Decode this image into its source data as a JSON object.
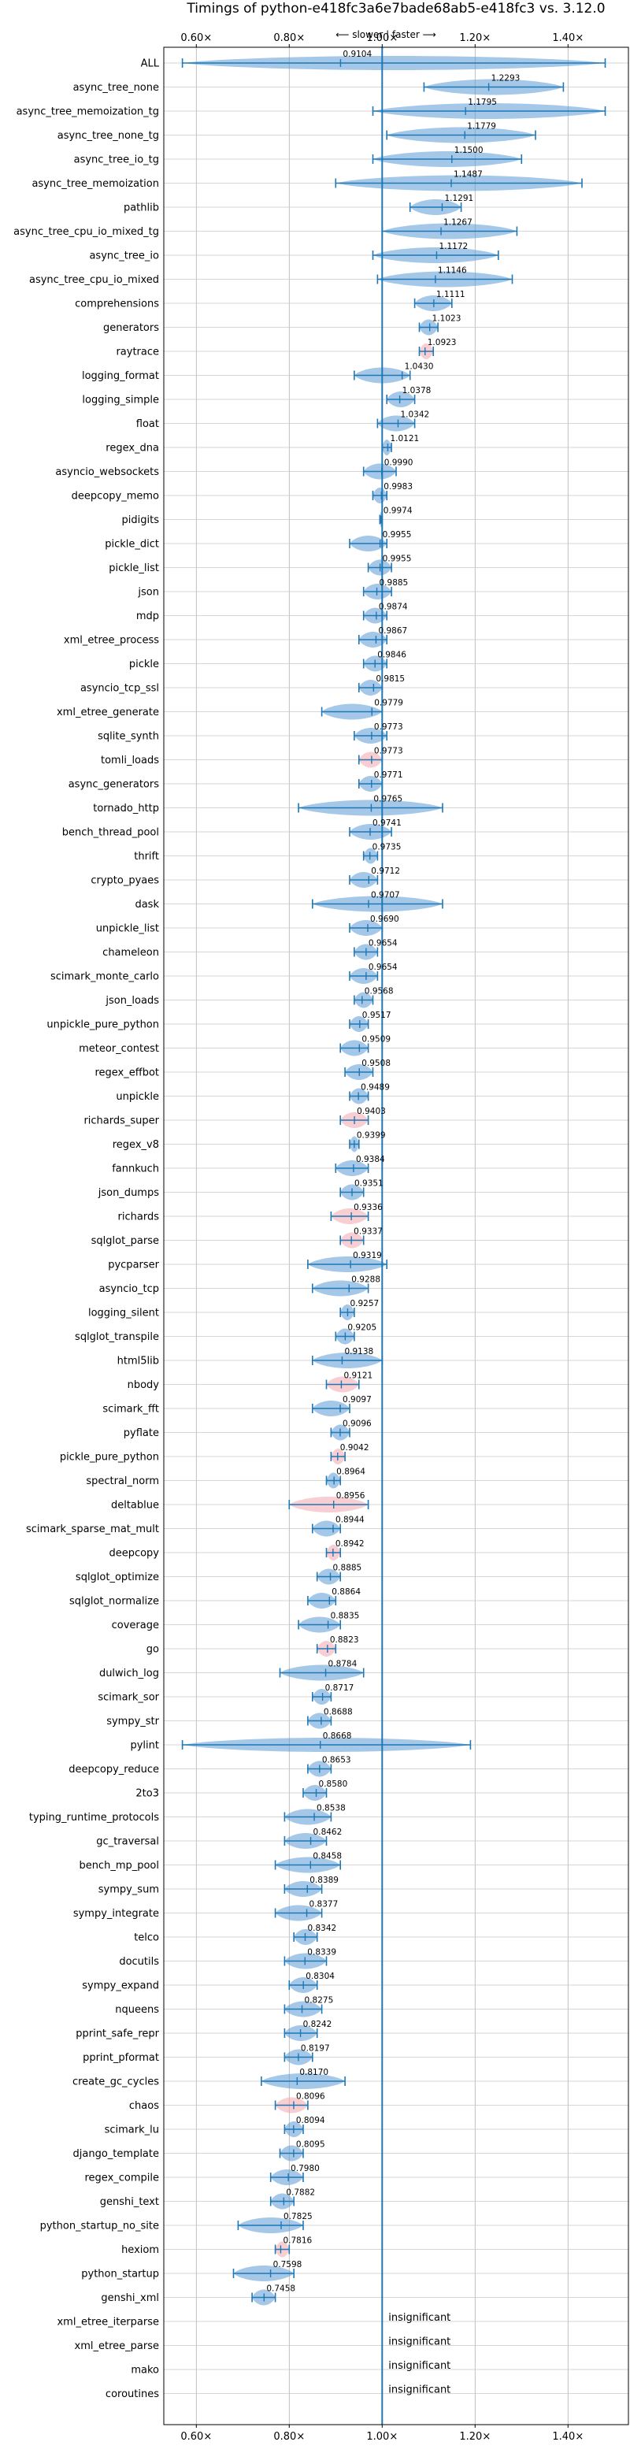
{
  "chart_data": {
    "type": "violin",
    "title": "Timings of python-e418fc3a6e7bade68ab5-e418fc3 vs. 3.12.0",
    "direction_label": "⟵ slower | faster ⟶",
    "x_tick_labels": [
      "0.60×",
      "0.80×",
      "1.00×",
      "1.20×",
      "1.40×"
    ],
    "x_ticks": [
      0.6,
      0.8,
      1.0,
      1.2,
      1.4
    ],
    "xlim": [
      0.53,
      1.53
    ],
    "reference_line": 1.0,
    "grid": true,
    "colors": {
      "faster_or_neutral": "#5b9bd5",
      "slower": "#f4a6ad",
      "whisker": "#1f77b4",
      "reference": "#1f77b4"
    },
    "insignificant_label": "insignificant",
    "benchmarks": [
      {
        "name": "ALL",
        "value": 0.9104,
        "min": 0.57,
        "max": 1.48,
        "spread": "wide",
        "color": "blue"
      },
      {
        "name": "async_tree_none",
        "value": 1.2293,
        "min": 1.09,
        "max": 1.39,
        "color": "blue"
      },
      {
        "name": "async_tree_memoization_tg",
        "value": 1.1795,
        "min": 0.98,
        "max": 1.48,
        "color": "blue"
      },
      {
        "name": "async_tree_none_tg",
        "value": 1.1779,
        "min": 1.01,
        "max": 1.33,
        "color": "blue"
      },
      {
        "name": "async_tree_io_tg",
        "value": 1.15,
        "min": 0.98,
        "max": 1.3,
        "color": "blue"
      },
      {
        "name": "async_tree_memoization",
        "value": 1.1487,
        "min": 0.9,
        "max": 1.43,
        "color": "blue"
      },
      {
        "name": "pathlib",
        "value": 1.1291,
        "min": 1.06,
        "max": 1.17,
        "color": "blue"
      },
      {
        "name": "async_tree_cpu_io_mixed_tg",
        "value": 1.1267,
        "min": 1.0,
        "max": 1.29,
        "color": "blue"
      },
      {
        "name": "async_tree_io",
        "value": 1.1172,
        "min": 0.98,
        "max": 1.25,
        "color": "blue"
      },
      {
        "name": "async_tree_cpu_io_mixed",
        "value": 1.1146,
        "min": 0.99,
        "max": 1.28,
        "color": "blue"
      },
      {
        "name": "comprehensions",
        "value": 1.1111,
        "min": 1.07,
        "max": 1.15,
        "color": "blue"
      },
      {
        "name": "generators",
        "value": 1.1023,
        "min": 1.08,
        "max": 1.12,
        "color": "blue"
      },
      {
        "name": "raytrace",
        "value": 1.0923,
        "min": 1.08,
        "max": 1.11,
        "color": "red"
      },
      {
        "name": "logging_format",
        "value": 1.043,
        "min": 0.94,
        "max": 1.06,
        "color": "blue"
      },
      {
        "name": "logging_simple",
        "value": 1.0378,
        "min": 1.01,
        "max": 1.07,
        "color": "blue"
      },
      {
        "name": "float",
        "value": 1.0342,
        "min": 0.99,
        "max": 1.07,
        "color": "blue"
      },
      {
        "name": "regex_dna",
        "value": 1.0121,
        "min": 1.0,
        "max": 1.02,
        "color": "blue"
      },
      {
        "name": "asyncio_websockets",
        "value": 0.999,
        "min": 0.96,
        "max": 1.03,
        "color": "blue"
      },
      {
        "name": "deepcopy_memo",
        "value": 0.9983,
        "min": 0.98,
        "max": 1.01,
        "color": "blue"
      },
      {
        "name": "pidigits",
        "value": 0.9974,
        "min": 0.995,
        "max": 1.0,
        "color": "blue"
      },
      {
        "name": "pickle_dict",
        "value": 0.9955,
        "min": 0.93,
        "max": 1.01,
        "color": "blue"
      },
      {
        "name": "pickle_list",
        "value": 0.9955,
        "min": 0.97,
        "max": 1.02,
        "color": "blue"
      },
      {
        "name": "json",
        "value": 0.9885,
        "min": 0.96,
        "max": 1.02,
        "color": "blue"
      },
      {
        "name": "mdp",
        "value": 0.9874,
        "min": 0.96,
        "max": 1.01,
        "color": "blue"
      },
      {
        "name": "xml_etree_process",
        "value": 0.9867,
        "min": 0.95,
        "max": 1.01,
        "color": "blue"
      },
      {
        "name": "pickle",
        "value": 0.9846,
        "min": 0.96,
        "max": 1.01,
        "color": "blue"
      },
      {
        "name": "asyncio_tcp_ssl",
        "value": 0.9815,
        "min": 0.95,
        "max": 1.0,
        "color": "blue"
      },
      {
        "name": "xml_etree_generate",
        "value": 0.9779,
        "min": 0.87,
        "max": 1.0,
        "color": "blue"
      },
      {
        "name": "sqlite_synth",
        "value": 0.9773,
        "min": 0.94,
        "max": 1.01,
        "color": "blue"
      },
      {
        "name": "tomli_loads",
        "value": 0.9773,
        "min": 0.95,
        "max": 1.0,
        "color": "red"
      },
      {
        "name": "async_generators",
        "value": 0.9771,
        "min": 0.95,
        "max": 1.0,
        "color": "blue"
      },
      {
        "name": "tornado_http",
        "value": 0.9765,
        "min": 0.82,
        "max": 1.13,
        "color": "blue"
      },
      {
        "name": "bench_thread_pool",
        "value": 0.9741,
        "min": 0.93,
        "max": 1.02,
        "color": "blue"
      },
      {
        "name": "thrift",
        "value": 0.9735,
        "min": 0.96,
        "max": 0.99,
        "color": "blue"
      },
      {
        "name": "crypto_pyaes",
        "value": 0.9712,
        "min": 0.93,
        "max": 0.99,
        "color": "blue"
      },
      {
        "name": "dask",
        "value": 0.9707,
        "min": 0.85,
        "max": 1.13,
        "color": "blue"
      },
      {
        "name": "unpickle_list",
        "value": 0.969,
        "min": 0.93,
        "max": 1.0,
        "color": "blue"
      },
      {
        "name": "chameleon",
        "value": 0.9654,
        "min": 0.94,
        "max": 0.99,
        "color": "blue"
      },
      {
        "name": "scimark_monte_carlo",
        "value": 0.9654,
        "min": 0.93,
        "max": 0.99,
        "color": "blue"
      },
      {
        "name": "json_loads",
        "value": 0.9568,
        "min": 0.94,
        "max": 0.98,
        "color": "blue"
      },
      {
        "name": "unpickle_pure_python",
        "value": 0.9517,
        "min": 0.93,
        "max": 0.97,
        "color": "blue"
      },
      {
        "name": "meteor_contest",
        "value": 0.9509,
        "min": 0.91,
        "max": 0.97,
        "color": "blue"
      },
      {
        "name": "regex_effbot",
        "value": 0.9508,
        "min": 0.92,
        "max": 0.98,
        "color": "blue"
      },
      {
        "name": "unpickle",
        "value": 0.9489,
        "min": 0.93,
        "max": 0.97,
        "color": "blue"
      },
      {
        "name": "richards_super",
        "value": 0.9403,
        "min": 0.91,
        "max": 0.97,
        "color": "red"
      },
      {
        "name": "regex_v8",
        "value": 0.9399,
        "min": 0.93,
        "max": 0.95,
        "color": "blue"
      },
      {
        "name": "fannkuch",
        "value": 0.9384,
        "min": 0.9,
        "max": 0.97,
        "color": "blue"
      },
      {
        "name": "json_dumps",
        "value": 0.9351,
        "min": 0.91,
        "max": 0.96,
        "color": "blue"
      },
      {
        "name": "richards",
        "value": 0.9336,
        "min": 0.89,
        "max": 0.97,
        "color": "red"
      },
      {
        "name": "sqlglot_parse",
        "value": 0.9337,
        "min": 0.91,
        "max": 0.96,
        "color": "red"
      },
      {
        "name": "pycparser",
        "value": 0.9319,
        "min": 0.84,
        "max": 1.01,
        "color": "blue"
      },
      {
        "name": "asyncio_tcp",
        "value": 0.9288,
        "min": 0.85,
        "max": 0.97,
        "color": "blue"
      },
      {
        "name": "logging_silent",
        "value": 0.9257,
        "min": 0.91,
        "max": 0.94,
        "color": "blue"
      },
      {
        "name": "sqlglot_transpile",
        "value": 0.9205,
        "min": 0.9,
        "max": 0.94,
        "color": "blue"
      },
      {
        "name": "html5lib",
        "value": 0.9138,
        "min": 0.85,
        "max": 1.0,
        "color": "blue"
      },
      {
        "name": "nbody",
        "value": 0.9121,
        "min": 0.88,
        "max": 0.95,
        "color": "red"
      },
      {
        "name": "scimark_fft",
        "value": 0.9097,
        "min": 0.85,
        "max": 0.93,
        "color": "blue"
      },
      {
        "name": "pyflate",
        "value": 0.9096,
        "min": 0.89,
        "max": 0.93,
        "color": "blue"
      },
      {
        "name": "pickle_pure_python",
        "value": 0.9042,
        "min": 0.89,
        "max": 0.92,
        "color": "red"
      },
      {
        "name": "spectral_norm",
        "value": 0.8964,
        "min": 0.88,
        "max": 0.91,
        "color": "blue"
      },
      {
        "name": "deltablue",
        "value": 0.8956,
        "min": 0.8,
        "max": 0.97,
        "color": "red"
      },
      {
        "name": "scimark_sparse_mat_mult",
        "value": 0.8944,
        "min": 0.85,
        "max": 0.91,
        "color": "blue"
      },
      {
        "name": "deepcopy",
        "value": 0.8942,
        "min": 0.88,
        "max": 0.91,
        "color": "red"
      },
      {
        "name": "sqlglot_optimize",
        "value": 0.8885,
        "min": 0.86,
        "max": 0.91,
        "color": "blue"
      },
      {
        "name": "sqlglot_normalize",
        "value": 0.8864,
        "min": 0.84,
        "max": 0.9,
        "color": "blue"
      },
      {
        "name": "coverage",
        "value": 0.8835,
        "min": 0.82,
        "max": 0.91,
        "color": "blue"
      },
      {
        "name": "go",
        "value": 0.8823,
        "min": 0.86,
        "max": 0.9,
        "color": "red"
      },
      {
        "name": "dulwich_log",
        "value": 0.8784,
        "min": 0.78,
        "max": 0.96,
        "color": "blue"
      },
      {
        "name": "scimark_sor",
        "value": 0.8717,
        "min": 0.85,
        "max": 0.89,
        "color": "blue"
      },
      {
        "name": "sympy_str",
        "value": 0.8688,
        "min": 0.84,
        "max": 0.89,
        "color": "blue"
      },
      {
        "name": "pylint",
        "value": 0.8668,
        "min": 0.57,
        "max": 1.19,
        "spread": "wide",
        "color": "blue"
      },
      {
        "name": "deepcopy_reduce",
        "value": 0.8653,
        "min": 0.84,
        "max": 0.89,
        "color": "blue"
      },
      {
        "name": "2to3",
        "value": 0.858,
        "min": 0.83,
        "max": 0.88,
        "color": "blue"
      },
      {
        "name": "typing_runtime_protocols",
        "value": 0.8538,
        "min": 0.79,
        "max": 0.89,
        "color": "blue"
      },
      {
        "name": "gc_traversal",
        "value": 0.8462,
        "min": 0.79,
        "max": 0.88,
        "color": "blue"
      },
      {
        "name": "bench_mp_pool",
        "value": 0.8458,
        "min": 0.77,
        "max": 0.91,
        "color": "blue"
      },
      {
        "name": "sympy_sum",
        "value": 0.8389,
        "min": 0.79,
        "max": 0.87,
        "color": "blue"
      },
      {
        "name": "sympy_integrate",
        "value": 0.8377,
        "min": 0.77,
        "max": 0.87,
        "color": "blue"
      },
      {
        "name": "telco",
        "value": 0.8342,
        "min": 0.81,
        "max": 0.86,
        "color": "blue"
      },
      {
        "name": "docutils",
        "value": 0.8339,
        "min": 0.79,
        "max": 0.88,
        "color": "blue"
      },
      {
        "name": "sympy_expand",
        "value": 0.8304,
        "min": 0.8,
        "max": 0.86,
        "color": "blue"
      },
      {
        "name": "nqueens",
        "value": 0.8275,
        "min": 0.79,
        "max": 0.87,
        "color": "blue"
      },
      {
        "name": "pprint_safe_repr",
        "value": 0.8242,
        "min": 0.79,
        "max": 0.86,
        "color": "blue"
      },
      {
        "name": "pprint_pformat",
        "value": 0.8197,
        "min": 0.79,
        "max": 0.85,
        "color": "blue"
      },
      {
        "name": "create_gc_cycles",
        "value": 0.817,
        "min": 0.74,
        "max": 0.92,
        "color": "blue"
      },
      {
        "name": "chaos",
        "value": 0.8096,
        "min": 0.77,
        "max": 0.84,
        "color": "red"
      },
      {
        "name": "scimark_lu",
        "value": 0.8094,
        "min": 0.79,
        "max": 0.83,
        "color": "blue"
      },
      {
        "name": "django_template",
        "value": 0.8095,
        "min": 0.78,
        "max": 0.83,
        "color": "blue"
      },
      {
        "name": "regex_compile",
        "value": 0.798,
        "min": 0.76,
        "max": 0.83,
        "color": "blue"
      },
      {
        "name": "genshi_text",
        "value": 0.7882,
        "min": 0.76,
        "max": 0.81,
        "color": "blue"
      },
      {
        "name": "python_startup_no_site",
        "value": 0.7825,
        "min": 0.69,
        "max": 0.83,
        "color": "blue"
      },
      {
        "name": "hexiom",
        "value": 0.7816,
        "min": 0.77,
        "max": 0.8,
        "color": "red"
      },
      {
        "name": "python_startup",
        "value": 0.7598,
        "min": 0.68,
        "max": 0.81,
        "color": "blue"
      },
      {
        "name": "genshi_xml",
        "value": 0.7458,
        "min": 0.72,
        "max": 0.77,
        "color": "blue"
      },
      {
        "name": "xml_etree_iterparse",
        "value": null,
        "insignificant": true
      },
      {
        "name": "xml_etree_parse",
        "value": null,
        "insignificant": true
      },
      {
        "name": "mako",
        "value": null,
        "insignificant": true
      },
      {
        "name": "coroutines",
        "value": null,
        "insignificant": true
      }
    ]
  }
}
